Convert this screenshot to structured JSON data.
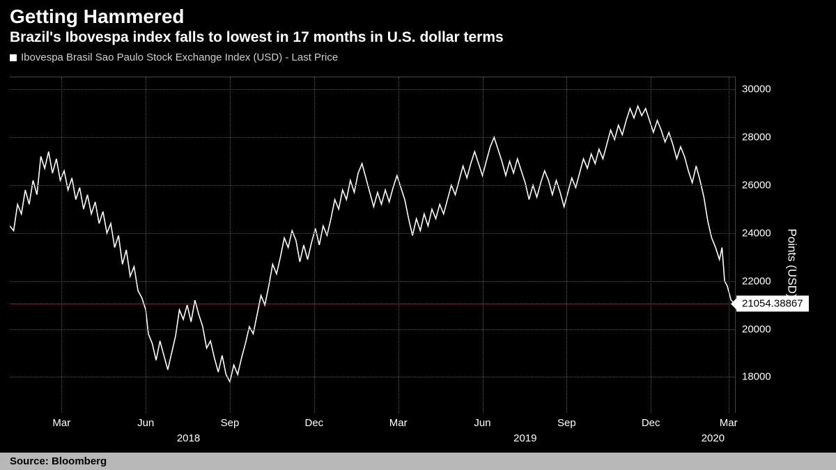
{
  "header": {
    "title": "Getting Hammered",
    "subtitle": "Brazil's Ibovespa index falls to lowest in 17 months in U.S. dollar terms"
  },
  "legend": {
    "series_label": "Ibovespa Brasil Sao Paulo Stock Exchange Index (USD) - Last Price"
  },
  "chart": {
    "type": "line",
    "background_color": "#000000",
    "line_color": "#ffffff",
    "line_width": 1.6,
    "grid_color": "#555555",
    "ref_line_color": "#ff3333",
    "y": {
      "min": 16500,
      "max": 30500,
      "ticks": [
        18000,
        20000,
        22000,
        24000,
        26000,
        28000,
        30000
      ],
      "axis_label": "Points (USD)"
    },
    "x": {
      "min": 0,
      "max": 560,
      "month_ticks": [
        {
          "pos": 40,
          "label": "Mar"
        },
        {
          "pos": 105,
          "label": "Jun"
        },
        {
          "pos": 170,
          "label": "Sep"
        },
        {
          "pos": 235,
          "label": "Dec"
        },
        {
          "pos": 300,
          "label": "Mar"
        },
        {
          "pos": 365,
          "label": "Jun"
        },
        {
          "pos": 430,
          "label": "Sep"
        },
        {
          "pos": 495,
          "label": "Dec"
        },
        {
          "pos": 555,
          "label": "Mar"
        }
      ],
      "year_ticks": [
        {
          "pos": 138,
          "label": "2018"
        },
        {
          "pos": 398,
          "label": "2019"
        },
        {
          "pos": 543,
          "label": "2020"
        }
      ]
    },
    "last_price": 21054.38867,
    "last_price_label": "21054.38867",
    "series": [
      [
        0,
        24300
      ],
      [
        3,
        24100
      ],
      [
        6,
        25200
      ],
      [
        9,
        24800
      ],
      [
        12,
        25800
      ],
      [
        15,
        25200
      ],
      [
        18,
        26200
      ],
      [
        21,
        25600
      ],
      [
        24,
        27200
      ],
      [
        27,
        26700
      ],
      [
        30,
        27400
      ],
      [
        33,
        26500
      ],
      [
        36,
        27100
      ],
      [
        39,
        26200
      ],
      [
        42,
        26600
      ],
      [
        45,
        25800
      ],
      [
        48,
        26300
      ],
      [
        51,
        25400
      ],
      [
        54,
        25900
      ],
      [
        57,
        25000
      ],
      [
        60,
        25600
      ],
      [
        63,
        24800
      ],
      [
        66,
        25300
      ],
      [
        69,
        24400
      ],
      [
        72,
        24900
      ],
      [
        75,
        24000
      ],
      [
        78,
        24400
      ],
      [
        81,
        23400
      ],
      [
        84,
        23900
      ],
      [
        87,
        22700
      ],
      [
        90,
        23300
      ],
      [
        93,
        22200
      ],
      [
        96,
        22600
      ],
      [
        99,
        21600
      ],
      [
        102,
        21300
      ],
      [
        105,
        20800
      ],
      [
        107,
        19800
      ],
      [
        110,
        19400
      ],
      [
        113,
        18700
      ],
      [
        116,
        19500
      ],
      [
        119,
        18900
      ],
      [
        122,
        18300
      ],
      [
        125,
        19000
      ],
      [
        128,
        19700
      ],
      [
        131,
        20800
      ],
      [
        134,
        20400
      ],
      [
        137,
        21000
      ],
      [
        140,
        20300
      ],
      [
        143,
        21200
      ],
      [
        146,
        20600
      ],
      [
        149,
        20100
      ],
      [
        152,
        19200
      ],
      [
        155,
        19500
      ],
      [
        158,
        18800
      ],
      [
        161,
        18200
      ],
      [
        164,
        18900
      ],
      [
        167,
        18100
      ],
      [
        170,
        17800
      ],
      [
        173,
        18500
      ],
      [
        176,
        18100
      ],
      [
        179,
        18800
      ],
      [
        182,
        19400
      ],
      [
        185,
        20100
      ],
      [
        188,
        19800
      ],
      [
        191,
        20600
      ],
      [
        194,
        21400
      ],
      [
        197,
        21000
      ],
      [
        200,
        21800
      ],
      [
        203,
        22700
      ],
      [
        206,
        22300
      ],
      [
        209,
        23000
      ],
      [
        212,
        23800
      ],
      [
        215,
        23400
      ],
      [
        218,
        24100
      ],
      [
        221,
        23700
      ],
      [
        224,
        22800
      ],
      [
        227,
        23500
      ],
      [
        230,
        22900
      ],
      [
        233,
        23600
      ],
      [
        236,
        24200
      ],
      [
        239,
        23500
      ],
      [
        242,
        24300
      ],
      [
        245,
        23900
      ],
      [
        248,
        24600
      ],
      [
        251,
        25400
      ],
      [
        254,
        25000
      ],
      [
        257,
        25800
      ],
      [
        260,
        25400
      ],
      [
        263,
        26200
      ],
      [
        266,
        25700
      ],
      [
        269,
        26500
      ],
      [
        272,
        26900
      ],
      [
        275,
        26300
      ],
      [
        278,
        25700
      ],
      [
        281,
        25100
      ],
      [
        284,
        25700
      ],
      [
        287,
        25200
      ],
      [
        290,
        25800
      ],
      [
        293,
        25300
      ],
      [
        296,
        25900
      ],
      [
        299,
        26400
      ],
      [
        302,
        25900
      ],
      [
        305,
        25400
      ],
      [
        308,
        24600
      ],
      [
        311,
        23900
      ],
      [
        314,
        24600
      ],
      [
        317,
        24100
      ],
      [
        320,
        24800
      ],
      [
        323,
        24300
      ],
      [
        326,
        25000
      ],
      [
        329,
        24600
      ],
      [
        332,
        25200
      ],
      [
        335,
        24800
      ],
      [
        338,
        25400
      ],
      [
        341,
        26000
      ],
      [
        344,
        25600
      ],
      [
        347,
        26200
      ],
      [
        350,
        26800
      ],
      [
        353,
        26300
      ],
      [
        356,
        26900
      ],
      [
        359,
        27400
      ],
      [
        362,
        26900
      ],
      [
        365,
        26400
      ],
      [
        368,
        27000
      ],
      [
        371,
        27600
      ],
      [
        374,
        28000
      ],
      [
        377,
        27500
      ],
      [
        380,
        27000
      ],
      [
        383,
        26400
      ],
      [
        386,
        27000
      ],
      [
        389,
        26500
      ],
      [
        392,
        27100
      ],
      [
        395,
        26600
      ],
      [
        398,
        26100
      ],
      [
        401,
        25400
      ],
      [
        404,
        26000
      ],
      [
        407,
        25500
      ],
      [
        410,
        26100
      ],
      [
        413,
        26600
      ],
      [
        416,
        26200
      ],
      [
        419,
        25600
      ],
      [
        422,
        26200
      ],
      [
        425,
        25700
      ],
      [
        428,
        25100
      ],
      [
        431,
        25700
      ],
      [
        434,
        26300
      ],
      [
        437,
        25900
      ],
      [
        440,
        26500
      ],
      [
        443,
        27100
      ],
      [
        446,
        26700
      ],
      [
        449,
        27300
      ],
      [
        452,
        26900
      ],
      [
        455,
        27500
      ],
      [
        458,
        27100
      ],
      [
        461,
        27700
      ],
      [
        464,
        28300
      ],
      [
        467,
        27900
      ],
      [
        470,
        28500
      ],
      [
        473,
        28100
      ],
      [
        476,
        28700
      ],
      [
        479,
        29200
      ],
      [
        482,
        28800
      ],
      [
        485,
        29300
      ],
      [
        488,
        28900
      ],
      [
        491,
        29200
      ],
      [
        494,
        28700
      ],
      [
        497,
        28200
      ],
      [
        500,
        28700
      ],
      [
        503,
        28300
      ],
      [
        506,
        27800
      ],
      [
        509,
        28200
      ],
      [
        512,
        27700
      ],
      [
        515,
        27100
      ],
      [
        518,
        27600
      ],
      [
        521,
        27200
      ],
      [
        524,
        26600
      ],
      [
        527,
        26100
      ],
      [
        530,
        26800
      ],
      [
        533,
        26200
      ],
      [
        536,
        25500
      ],
      [
        539,
        24500
      ],
      [
        542,
        23800
      ],
      [
        545,
        23400
      ],
      [
        548,
        22900
      ],
      [
        550,
        23400
      ],
      [
        552,
        22000
      ],
      [
        554,
        21800
      ],
      [
        557,
        21200
      ],
      [
        560,
        21054.38867
      ]
    ]
  },
  "footer": {
    "source": "Source: Bloomberg"
  }
}
